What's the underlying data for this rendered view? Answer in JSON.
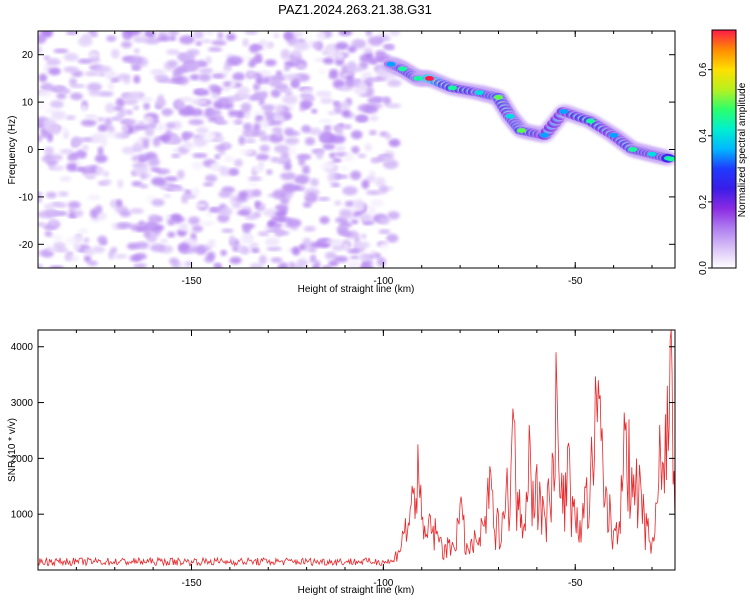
{
  "figure_title": "PAZ1.2024.263.21.38.G31",
  "chart_data": [
    {
      "type": "heatmap",
      "xlabel": "Height of straight line (km)",
      "ylabel": "Frequency (Hz)",
      "xlim": [
        -190,
        -24
      ],
      "ylim": [
        -25,
        25
      ],
      "x_ticks": [
        -150,
        -100,
        -50
      ],
      "y_ticks": [
        -20,
        -10,
        0,
        10,
        20
      ],
      "colorbar": {
        "label": "Normalized spectral amplitude",
        "range": [
          0,
          0.72
        ],
        "ticks": [
          "0.0",
          "0.2",
          "0.4",
          "0.6"
        ],
        "colormap": [
          "#ffffff",
          "#d9c2f7",
          "#b07ef0",
          "#8a2be2",
          "#3a1ce8",
          "#1f3aff",
          "#00b8ff",
          "#00f0d0",
          "#2cff6a",
          "#b8f020",
          "#ffe000",
          "#ff8c00",
          "#ff1a4a"
        ]
      },
      "noise_region": {
        "x": [
          -190,
          -97
        ],
        "y": [
          -25,
          25
        ],
        "amplitude_range": [
          0.0,
          0.12
        ]
      },
      "signal_track": [
        {
          "x": -98,
          "freq": 18,
          "amplitude": 0.35
        },
        {
          "x": -95,
          "freq": 17,
          "amplitude": 0.45
        },
        {
          "x": -91,
          "freq": 15,
          "amplitude": 0.45
        },
        {
          "x": -88,
          "freq": 15,
          "amplitude": 0.72
        },
        {
          "x": -82,
          "freq": 13,
          "amplitude": 0.45
        },
        {
          "x": -75,
          "freq": 12,
          "amplitude": 0.4
        },
        {
          "x": -70,
          "freq": 11,
          "amplitude": 0.5
        },
        {
          "x": -67,
          "freq": 7,
          "amplitude": 0.4
        },
        {
          "x": -64,
          "freq": 4,
          "amplitude": 0.5
        },
        {
          "x": -58,
          "freq": 3,
          "amplitude": 0.35
        },
        {
          "x": -53,
          "freq": 8,
          "amplitude": 0.35
        },
        {
          "x": -46,
          "freq": 6,
          "amplitude": 0.45
        },
        {
          "x": -40,
          "freq": 3,
          "amplitude": 0.35
        },
        {
          "x": -35,
          "freq": 0,
          "amplitude": 0.45
        },
        {
          "x": -30,
          "freq": -1,
          "amplitude": 0.4
        },
        {
          "x": -25,
          "freq": -2,
          "amplitude": 0.45
        }
      ]
    },
    {
      "type": "line",
      "xlabel": "Height of straight line (km)",
      "ylabel": "SNR (10 * v/v)",
      "xlim": [
        -190,
        -24
      ],
      "ylim": [
        0,
        4300
      ],
      "x_ticks": [
        -150,
        -100,
        -50
      ],
      "y_ticks": [
        1000,
        2000,
        3000,
        4000
      ],
      "color": "#e8282b",
      "series": [
        {
          "x": [
            -190,
            -180,
            -170,
            -160,
            -150,
            -140,
            -130,
            -120,
            -110,
            -100,
            -97,
            -95,
            -93,
            -91,
            -90,
            -89,
            -88,
            -86,
            -84,
            -82,
            -80,
            -78,
            -76,
            -74,
            -73,
            -72,
            -71,
            -70,
            -68,
            -66,
            -65,
            -64,
            -62,
            -61,
            -60,
            -59,
            -58,
            -56,
            -55,
            -54,
            -53,
            -52,
            -50,
            -48,
            -46,
            -44,
            -42,
            -40,
            -38,
            -37,
            -36,
            -35,
            -34,
            -32,
            -30,
            -29,
            -28,
            -27,
            -26,
            -25,
            -24
          ],
          "y": [
            130,
            150,
            120,
            140,
            160,
            130,
            150,
            170,
            140,
            160,
            250,
            700,
            1100,
            2250,
            900,
            600,
            1000,
            700,
            450,
            500,
            1200,
            400,
            600,
            800,
            1300,
            1750,
            700,
            1000,
            1500,
            2700,
            1400,
            1000,
            2600,
            1600,
            1900,
            1300,
            1000,
            2100,
            3900,
            1300,
            1700,
            2200,
            900,
            1200,
            1800,
            3400,
            1500,
            700,
            1700,
            2500,
            2700,
            1300,
            2000,
            1000,
            500,
            1200,
            2600,
            1900,
            3300,
            4300,
            800
          ]
        }
      ]
    }
  ]
}
